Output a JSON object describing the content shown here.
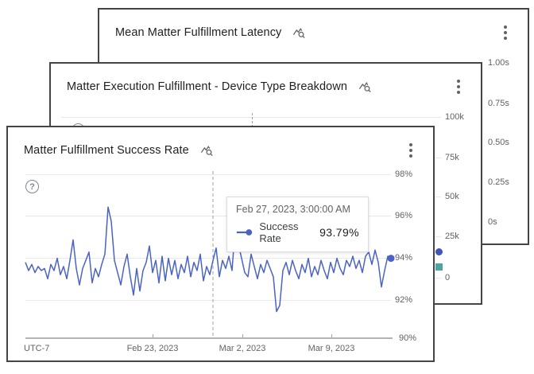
{
  "colors": {
    "line_blue": "#4a63c4",
    "endpoint_dot_blue": "#4254b5",
    "endpoint_square_teal": "#4ca69b",
    "card_border": "#454545",
    "gridline": "#e8e8e8",
    "axis_label": "#616161",
    "title_text": "#202124"
  },
  "cards": {
    "latency": {
      "title": "Mean Matter Fulfillment Latency",
      "y_ticks": [
        "1.00s",
        "0.75s",
        "0.50s",
        "0.25s",
        "0s"
      ]
    },
    "breakdown": {
      "title": "Matter Execution Fulfillment - Device Type Breakdown",
      "y_ticks": [
        "100k",
        "75k",
        "50k",
        "25k",
        "0"
      ]
    },
    "success": {
      "title": "Matter Fulfillment Success Rate",
      "help_glyph": "?",
      "y_ticks": [
        "98%",
        "96%",
        "94%",
        "92%",
        "90%"
      ],
      "x_ticks": [
        "Feb 23, 2023",
        "Mar 2, 2023",
        "Mar 9, 2023"
      ],
      "utc_label": "UTC-7",
      "tooltip": {
        "timestamp": "Feb 27, 2023, 3:00:00 AM",
        "series_label": "Success Rate",
        "value": "93.79%"
      }
    }
  },
  "chart_data": [
    {
      "type": "line",
      "title": "Mean Matter Fulfillment Latency",
      "y_tick_labels": [
        "1.00s",
        "0.75s",
        "0.50s",
        "0.25s",
        "0s"
      ],
      "ylim": [
        0,
        1.0
      ],
      "yunit": "s",
      "note": "plot area hidden behind the cards stacked in front; only right-side axis labels visible"
    },
    {
      "type": "line",
      "title": "Matter Execution Fulfillment - Device Type Breakdown",
      "y_tick_labels": [
        "100k",
        "75k",
        "50k",
        "25k",
        "0"
      ],
      "ylim": [
        0,
        100000
      ],
      "grid": true,
      "visible_endpoint_markers": [
        {
          "shape": "circle",
          "color": "#4254b5",
          "approx_value": 15000
        },
        {
          "shape": "square",
          "color": "#4ca69b",
          "approx_value": 5000
        }
      ],
      "note": "plot area mostly hidden behind front card; hover dashed guide and 100k gridline visible at top"
    },
    {
      "type": "line",
      "title": "Matter Fulfillment Success Rate",
      "timezone": "UTC-7",
      "x_ticks": [
        "Feb 23, 2023",
        "Mar 2, 2023",
        "Mar 9, 2023"
      ],
      "ylim": [
        90,
        98
      ],
      "yunit": "%",
      "y_tick_labels": [
        "98%",
        "96%",
        "94%",
        "92%",
        "90%"
      ],
      "grid": true,
      "legend_position": "tooltip",
      "hover": {
        "x_index": 59,
        "timestamp": "Feb 27, 2023, 3:00:00 AM",
        "value": 93.79
      },
      "series": [
        {
          "name": "Success Rate",
          "color": "#4a63c4",
          "values": [
            93.7,
            93.3,
            93.6,
            93.2,
            93.5,
            93.3,
            93.4,
            92.9,
            93.6,
            93.3,
            93.9,
            93.1,
            93.5,
            92.9,
            93.8,
            94.8,
            93.4,
            92.6,
            93.4,
            93.8,
            94.2,
            92.7,
            93.4,
            93.0,
            93.6,
            94.1,
            96.4,
            95.7,
            93.8,
            93.2,
            92.6,
            93.5,
            94.1,
            93.0,
            92.1,
            93.4,
            92.3,
            93.3,
            93.7,
            94.5,
            93.2,
            93.8,
            92.7,
            94.0,
            92.8,
            93.9,
            93.1,
            93.8,
            92.9,
            93.6,
            93.2,
            94.0,
            93.0,
            93.7,
            93.3,
            94.1,
            92.8,
            93.5,
            93.1,
            93.79,
            94.4,
            93.0,
            93.8,
            93.4,
            94.0,
            93.3,
            95.4,
            94.6,
            93.9,
            93.2,
            93.0,
            94.1,
            93.5,
            92.9,
            93.6,
            93.2,
            93.8,
            93.4,
            93.0,
            91.3,
            91.6,
            93.3,
            93.7,
            93.1,
            93.8,
            93.3,
            92.9,
            93.6,
            93.2,
            93.9,
            93.0,
            93.5,
            93.1,
            93.8,
            93.3,
            92.9,
            93.7,
            93.2,
            93.9,
            93.4,
            93.1,
            93.8,
            93.5,
            94.0,
            93.4,
            93.8,
            93.2,
            94.0,
            94.2,
            93.6,
            94.3,
            93.7,
            92.5,
            93.3,
            94.0,
            93.9
          ]
        }
      ]
    }
  ]
}
